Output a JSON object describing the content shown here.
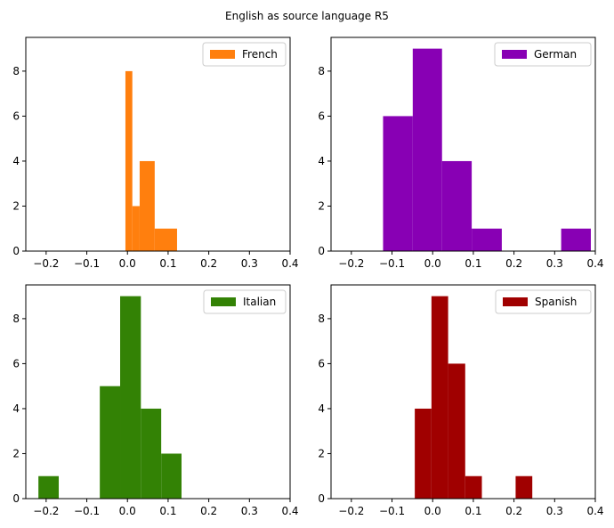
{
  "title": "English as source language R5",
  "chart_data": [
    {
      "type": "bar",
      "subtype": "histogram",
      "legend": "French",
      "legend_position": "top-right",
      "color": "#ff7f0e",
      "xlim": [
        -0.25,
        0.4
      ],
      "ylim": [
        0,
        9.5
      ],
      "xticks": [
        "−0.2",
        "−0.1",
        "0.0",
        "0.1",
        "0.2",
        "0.3",
        "0.4"
      ],
      "xtick_values": [
        -0.2,
        -0.1,
        0.0,
        0.1,
        0.2,
        0.3,
        0.4
      ],
      "yticks": [
        "0",
        "2",
        "4",
        "6",
        "8"
      ],
      "ytick_values": [
        0,
        2,
        4,
        6,
        8
      ],
      "bins": [
        {
          "x0": -0.005,
          "x1": 0.012,
          "count": 8
        },
        {
          "x0": 0.012,
          "x1": 0.03,
          "count": 2
        },
        {
          "x0": 0.03,
          "x1": 0.067,
          "count": 4
        },
        {
          "x0": 0.067,
          "x1": 0.122,
          "count": 1
        }
      ]
    },
    {
      "type": "bar",
      "subtype": "histogram",
      "legend": "German",
      "legend_position": "top-right",
      "color": "#8800b4",
      "xlim": [
        -0.25,
        0.4
      ],
      "ylim": [
        0,
        9.5
      ],
      "xticks": [
        "−0.2",
        "−0.1",
        "0.0",
        "0.1",
        "0.2",
        "0.3",
        "0.4"
      ],
      "xtick_values": [
        -0.2,
        -0.1,
        0.0,
        0.1,
        0.2,
        0.3,
        0.4
      ],
      "yticks": [
        "0",
        "2",
        "4",
        "6",
        "8"
      ],
      "ytick_values": [
        0,
        2,
        4,
        6,
        8
      ],
      "bins": [
        {
          "x0": -0.122,
          "x1": -0.049,
          "count": 6
        },
        {
          "x0": -0.049,
          "x1": 0.023,
          "count": 9
        },
        {
          "x0": 0.023,
          "x1": 0.096,
          "count": 4
        },
        {
          "x0": 0.096,
          "x1": 0.17,
          "count": 1
        },
        {
          "x0": 0.17,
          "x1": 0.316,
          "count": 0
        },
        {
          "x0": 0.316,
          "x1": 0.389,
          "count": 1
        }
      ]
    },
    {
      "type": "bar",
      "subtype": "histogram",
      "legend": "Italian",
      "legend_position": "top-right",
      "color": "#338205",
      "xlim": [
        -0.25,
        0.4
      ],
      "ylim": [
        0,
        9.5
      ],
      "xticks": [
        "−0.2",
        "−0.1",
        "0.0",
        "0.1",
        "0.2",
        "0.3",
        "0.4"
      ],
      "xtick_values": [
        -0.2,
        -0.1,
        0.0,
        0.1,
        0.2,
        0.3,
        0.4
      ],
      "yticks": [
        "0",
        "2",
        "4",
        "6",
        "8"
      ],
      "ytick_values": [
        0,
        2,
        4,
        6,
        8
      ],
      "bins": [
        {
          "x0": -0.219,
          "x1": -0.169,
          "count": 1
        },
        {
          "x0": -0.169,
          "x1": -0.068,
          "count": 0
        },
        {
          "x0": -0.068,
          "x1": -0.018,
          "count": 5
        },
        {
          "x0": -0.018,
          "x1": 0.033,
          "count": 9
        },
        {
          "x0": 0.033,
          "x1": 0.083,
          "count": 4
        },
        {
          "x0": 0.083,
          "x1": 0.133,
          "count": 2
        }
      ]
    },
    {
      "type": "bar",
      "subtype": "histogram",
      "legend": "Spanish",
      "legend_position": "top-right",
      "color": "#a00000",
      "xlim": [
        -0.25,
        0.4
      ],
      "ylim": [
        0,
        9.5
      ],
      "xticks": [
        "−0.2",
        "−0.1",
        "0.0",
        "0.1",
        "0.2",
        "0.3",
        "0.4"
      ],
      "xtick_values": [
        -0.2,
        -0.1,
        0.0,
        0.1,
        0.2,
        0.3,
        0.4
      ],
      "yticks": [
        "0",
        "2",
        "4",
        "6",
        "8"
      ],
      "ytick_values": [
        0,
        2,
        4,
        6,
        8
      ],
      "bins": [
        {
          "x0": -0.044,
          "x1": -0.003,
          "count": 4
        },
        {
          "x0": -0.003,
          "x1": 0.038,
          "count": 9
        },
        {
          "x0": 0.038,
          "x1": 0.08,
          "count": 6
        },
        {
          "x0": 0.08,
          "x1": 0.121,
          "count": 1
        },
        {
          "x0": 0.121,
          "x1": 0.204,
          "count": 0
        },
        {
          "x0": 0.204,
          "x1": 0.245,
          "count": 1
        }
      ]
    }
  ]
}
